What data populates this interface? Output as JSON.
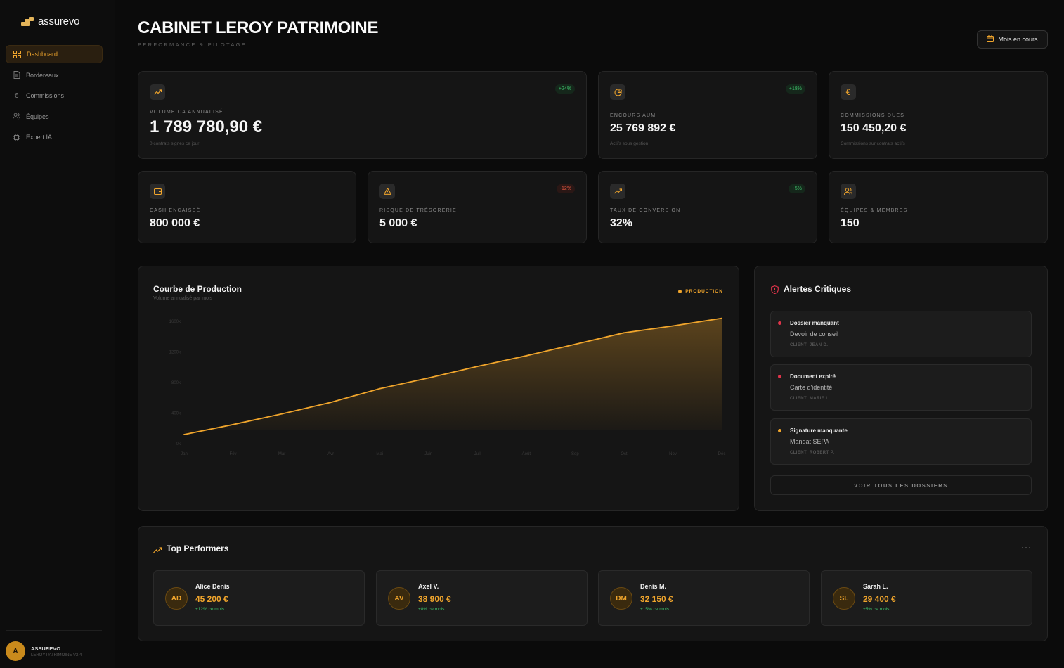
{
  "app": {
    "logo_text": "assurevo"
  },
  "sidebar": {
    "items": [
      {
        "label": "Dashboard",
        "icon": "grid-icon",
        "active": true
      },
      {
        "label": "Bordereaux",
        "icon": "document-icon",
        "active": false
      },
      {
        "label": "Commissions",
        "icon": "euro-icon",
        "active": false
      },
      {
        "label": "Équipes",
        "icon": "users-icon",
        "active": false
      },
      {
        "label": "Expert IA",
        "icon": "chip-icon",
        "active": false
      }
    ],
    "profile": {
      "initial": "A",
      "name": "ASSUREVO",
      "sub": "LEROY PATRIMOINE V2.4"
    }
  },
  "header": {
    "title": "CABINET LEROY PATRIMOINE",
    "subtitle": "PERFORMANCE & PILOTAGE",
    "period_button": "Mois en cours"
  },
  "kpis": [
    {
      "label": "Volume CA annualisé",
      "value": "1 789 780,90 €",
      "badge": "+24%",
      "badge_type": "positive",
      "footnote": "0 contrats signés ce jour",
      "icon": "trending-up-icon"
    },
    {
      "label": "Encours AUM",
      "value": "25 769 892 €",
      "badge": "+18%",
      "badge_type": "positive",
      "footnote": "Actifs sous gestion",
      "icon": "pie-chart-icon"
    },
    {
      "label": "Commissions dues",
      "value": "150 450,20 €",
      "badge": "",
      "footnote": "Commissions sur contrats actifs",
      "icon": "euro-icon"
    },
    {
      "label": "Cash encaissé",
      "value": "800 000 €",
      "badge": "",
      "icon": "wallet-icon"
    },
    {
      "label": "Risque de trésorerie",
      "value": "5 000 €",
      "badge": "-12%",
      "badge_type": "negative",
      "icon": "warning-icon"
    },
    {
      "label": "Taux de conversion",
      "value": "32%",
      "badge": "+5%",
      "badge_type": "positive",
      "icon": "trending-up-icon"
    },
    {
      "label": "Équipes & membres",
      "value": "150",
      "badge": "",
      "icon": "users-icon"
    }
  ],
  "production_chart": {
    "title": "Courbe de Production",
    "subtitle": "Volume annualisé par mois",
    "legend": "PRODUCTION"
  },
  "chart_data": {
    "type": "area",
    "title": "Courbe de Production",
    "subtitle": "Volume annualisé par mois",
    "categories": [
      "Jan",
      "Fév",
      "Mar",
      "Avr",
      "Mai",
      "Juin",
      "Juil",
      "Août",
      "Sep",
      "Oct",
      "Nov",
      "Déc"
    ],
    "series": [
      {
        "name": "PRODUCTION",
        "values": [
          120,
          250,
          390,
          540,
          720,
          860,
          1010,
          1150,
          1300,
          1450,
          1540,
          1640
        ]
      }
    ],
    "y_ticks": [
      "0k",
      "400k",
      "800k",
      "1200k",
      "1600k"
    ],
    "ylim": [
      0,
      1600
    ],
    "color": "#f0a52c",
    "grid": false
  },
  "alerts": {
    "title": "Alertes Critiques",
    "items": [
      {
        "title": "Dossier manquant",
        "description": "Devoir de conseil",
        "client": "CLIENT: JEAN D.",
        "color": "#e0344a"
      },
      {
        "title": "Document expiré",
        "description": "Carte d'identité",
        "client": "CLIENT: MARIE L.",
        "color": "#e0344a"
      },
      {
        "title": "Signature manquante",
        "description": "Mandat SEPA",
        "client": "CLIENT: ROBERT P.",
        "color": "#f0a52c"
      }
    ],
    "see_all": "VOIR TOUS LES DOSSIERS"
  },
  "performers": {
    "title": "Top Performers",
    "more": "···",
    "items": [
      {
        "initials": "AD",
        "name": "Alice Denis",
        "amount": "45 200 €",
        "growth": "+12% ce mois"
      },
      {
        "initials": "AV",
        "name": "Axel V.",
        "amount": "38 900 €",
        "growth": "+8% ce mois"
      },
      {
        "initials": "DM",
        "name": "Denis M.",
        "amount": "32 150 €",
        "growth": "+15% ce mois"
      },
      {
        "initials": "SL",
        "name": "Sarah L.",
        "amount": "29 400 €",
        "growth": "+5% ce mois"
      }
    ]
  }
}
